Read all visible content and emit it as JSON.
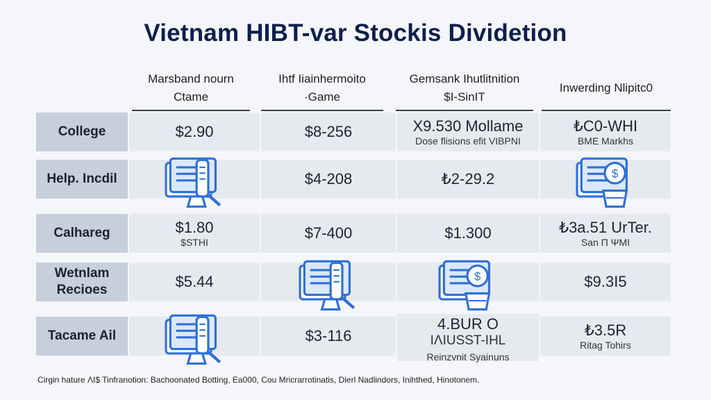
{
  "title": "Vietnam HIBT-var Stockis Dividetion",
  "columns": [
    {
      "line1": "Marsband nourn",
      "line2": "Ctame"
    },
    {
      "line1": "Ihtf Iiainhermoito",
      "line2": "·Game"
    },
    {
      "line1": "Gemsank Ihutlitnition",
      "line2": "$I-SinIT"
    },
    {
      "line1": "Inwerding Nlipitc0",
      "line2": ""
    }
  ],
  "rows": [
    {
      "label": [
        "College"
      ],
      "cells": [
        {
          "type": "text",
          "value": "$2.90",
          "sub": ""
        },
        {
          "type": "text",
          "value": "$8-256",
          "sub": ""
        },
        {
          "type": "text",
          "value": "X9.530 Mollame",
          "sub": "Dose flisions efit VIBPNI"
        },
        {
          "type": "text",
          "value": "₺C0-WHI",
          "sub": "BME Markhs"
        }
      ]
    },
    {
      "label": [
        "Help. Incdil"
      ],
      "cells": [
        {
          "type": "icon",
          "icon": "document-checklist-icon"
        },
        {
          "type": "text",
          "value": "$4-208",
          "sub": ""
        },
        {
          "type": "text",
          "value": "₺2-29.2",
          "sub": ""
        },
        {
          "type": "icon",
          "icon": "document-badge-icon"
        }
      ]
    },
    {
      "label": [
        "Calhareg"
      ],
      "cells": [
        {
          "type": "text",
          "value": "$1.80",
          "sub": "$STHI"
        },
        {
          "type": "text",
          "value": "$7-400",
          "sub": ""
        },
        {
          "type": "text",
          "value": "$1.300",
          "sub": ""
        },
        {
          "type": "text",
          "value": "₺3a.51 UrTer.",
          "sub": "San Π ΨΜΙ"
        }
      ]
    },
    {
      "label": [
        "Wetnlam",
        "Recioes"
      ],
      "cells": [
        {
          "type": "text",
          "value": "$5.44",
          "sub": ""
        },
        {
          "type": "icon",
          "icon": "document-checklist-icon"
        },
        {
          "type": "icon",
          "icon": "clipboard-badge-icon"
        },
        {
          "type": "text",
          "value": "$9.3I5",
          "sub": ""
        }
      ]
    },
    {
      "label": [
        "Tacame Ail"
      ],
      "cells": [
        {
          "type": "icon",
          "icon": "document-checklist-icon"
        },
        {
          "type": "text",
          "value": "$3-116",
          "sub": ""
        },
        {
          "type": "text",
          "value": "4.BUR O",
          "sub": "IΛIUSST-IHL",
          "sub2": "Reinzvnit Syainuns"
        },
        {
          "type": "text",
          "value": "₺3.5R",
          "sub": "Ritag Tohirs"
        }
      ]
    }
  ],
  "footnote": "Cirgin hature ΛI$ Tinfranotion: Bachoonated Botting, Ea000, Cou Mricrarrotinatis, Dierl Nadlindors, Inihthed, Hinotonem.",
  "colors": {
    "accent": "#2f6fd6",
    "label_bg": "#c6cfda",
    "cell_bg": "#e6e9ee",
    "title": "#0e1f4d"
  }
}
